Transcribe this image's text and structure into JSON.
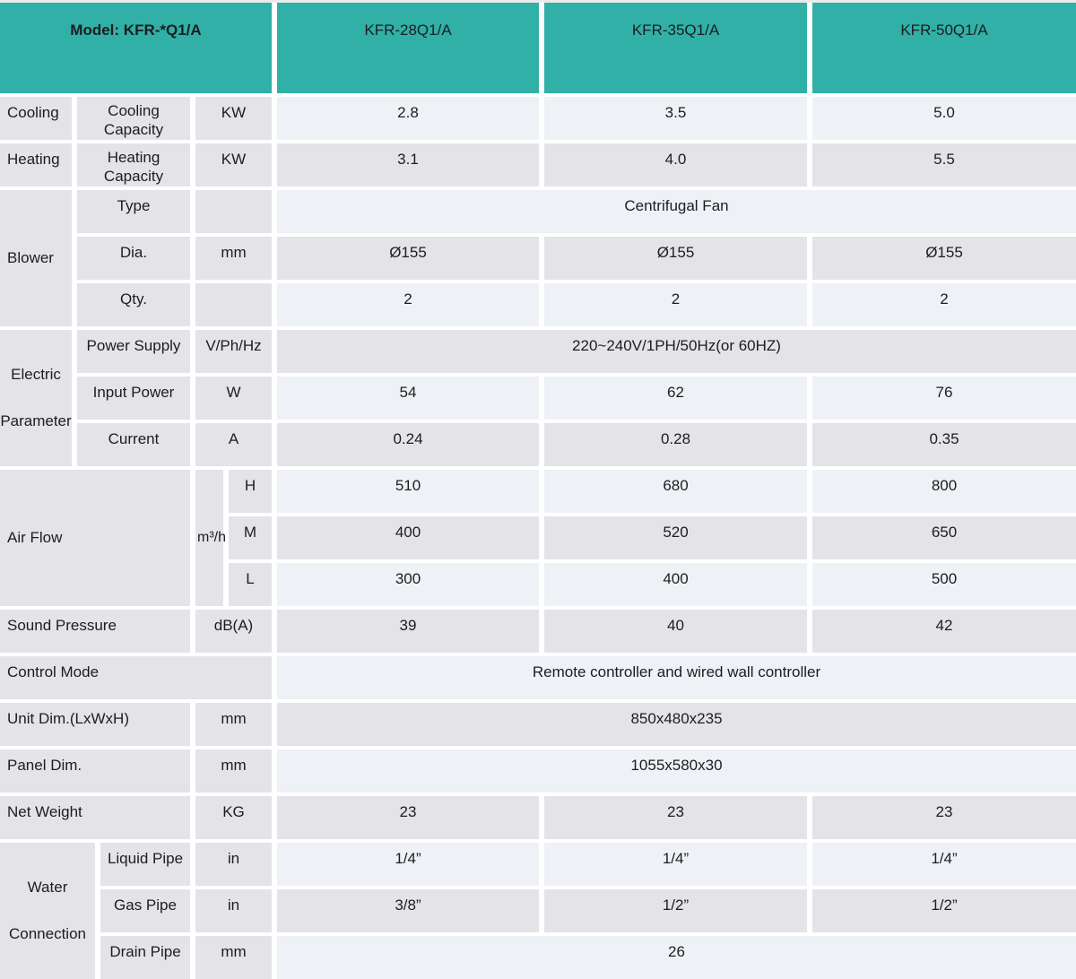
{
  "colors": {
    "header_bg": "#30b0a7",
    "row_light": "#eef2f6",
    "row_gray": "#e4e4e8",
    "gap": "#ffffff",
    "text": "#1d1d1f",
    "top_strip": "#ebebeb"
  },
  "header": {
    "model_label": "Model: KFR-*Q1/A",
    "columns": [
      "KFR-28Q1/A",
      "KFR-35Q1/A",
      "KFR-50Q1/A"
    ]
  },
  "sections": {
    "cooling": {
      "group": "Cooling",
      "sub": "Cooling Capacity",
      "unit": "KW",
      "values": [
        "2.8",
        "3.5",
        "5.0"
      ]
    },
    "heating": {
      "group": "Heating",
      "sub": "Heating Capacity",
      "unit": "KW",
      "values": [
        "3.1",
        "4.0",
        "5.5"
      ]
    },
    "blower": {
      "group": "Blower",
      "type": {
        "sub": "Type",
        "merged": "Centrifugal Fan"
      },
      "dia": {
        "sub": "Dia.",
        "unit": "mm",
        "values": [
          "Ø155",
          "Ø155",
          "Ø155"
        ]
      },
      "qty": {
        "sub": "Qty.",
        "values": [
          "2",
          "2",
          "2"
        ]
      }
    },
    "electric": {
      "group": "Electric Parameter",
      "power_supply": {
        "sub": "Power Supply",
        "unit": "V/Ph/Hz",
        "merged": "220~240V/1PH/50Hz(or 60HZ)"
      },
      "input_power": {
        "sub": "Input Power",
        "unit": "W",
        "values": [
          "54",
          "62",
          "76"
        ]
      },
      "current": {
        "sub": "Current",
        "unit": "A",
        "values": [
          "0.24",
          "0.28",
          "0.35"
        ]
      }
    },
    "airflow": {
      "group": "Air Flow",
      "unit": "m³/h",
      "high": {
        "level": "H",
        "values": [
          "510",
          "680",
          "800"
        ]
      },
      "medium": {
        "level": "M",
        "values": [
          "400",
          "520",
          "650"
        ]
      },
      "low": {
        "level": "L",
        "values": [
          "300",
          "400",
          "500"
        ]
      }
    },
    "sound_pressure": {
      "label": "Sound Pressure",
      "unit": "dB(A)",
      "values": [
        "39",
        "40",
        "42"
      ]
    },
    "control_mode": {
      "label": "Control Mode",
      "merged": "Remote controller and wired wall controller"
    },
    "unit_dim": {
      "label": "Unit Dim.(LxWxH)",
      "unit": "mm",
      "merged": "850x480x235"
    },
    "panel_dim": {
      "label": "Panel Dim.",
      "unit": "mm",
      "merged": "1055x580x30"
    },
    "net_weight": {
      "label": "Net Weight",
      "unit": "KG",
      "values": [
        "23",
        "23",
        "23"
      ]
    },
    "water": {
      "group": "Water Connection",
      "liquid_pipe": {
        "sub": "Liquid Pipe",
        "unit": "in",
        "values": [
          "1/4”",
          "1/4”",
          "1/4”"
        ]
      },
      "gas_pipe": {
        "sub": "Gas Pipe",
        "unit": "in",
        "values": [
          "3/8”",
          "1/2”",
          "1/2”"
        ]
      },
      "drain_pipe": {
        "sub": "Drain Pipe",
        "unit": "mm",
        "merged": "26"
      }
    }
  }
}
